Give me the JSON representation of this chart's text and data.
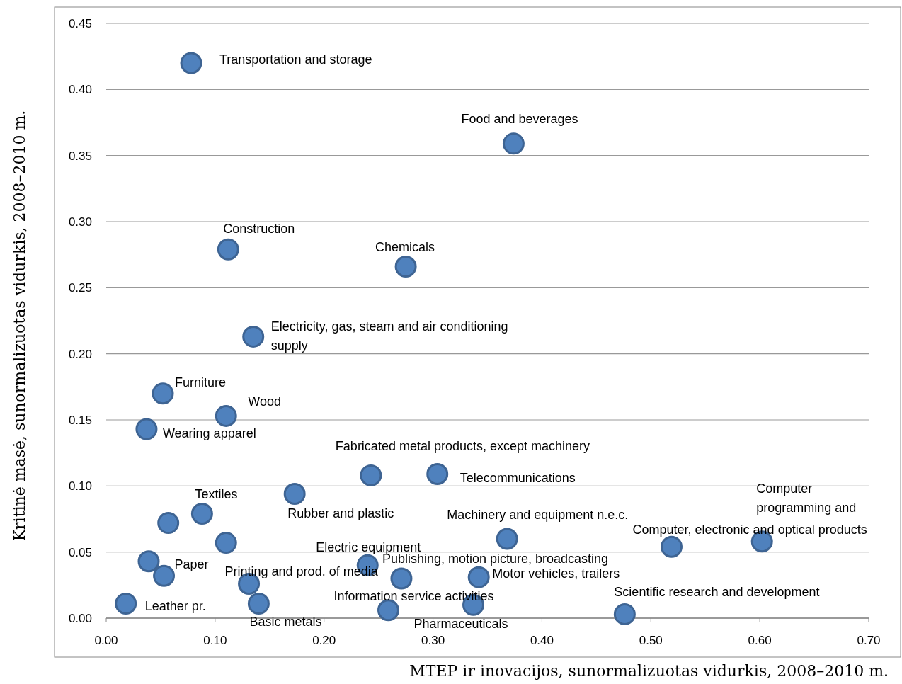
{
  "chart_data": {
    "type": "scatter",
    "xlabel": "MTEP ir inovacijos, sunormalizuotas vidurkis, 2008–2010 m.",
    "ylabel": "Kritinė masė, sunormalizuotas vidurkis, 2008–2010 m.",
    "xlim": [
      0,
      0.7
    ],
    "xticks": [
      {
        "value": 0,
        "label": "0.00"
      },
      {
        "value": 0.1,
        "label": "0.10"
      },
      {
        "value": 0.2,
        "label": "0.20"
      },
      {
        "value": 0.3,
        "label": "0.30"
      },
      {
        "value": 0.4,
        "label": "0.40"
      },
      {
        "value": 0.5,
        "label": "0.50"
      },
      {
        "value": 0.6,
        "label": "0.60"
      },
      {
        "value": 0.7,
        "label": "0.70"
      }
    ],
    "ylim": [
      0,
      0.45
    ],
    "yticks": [
      {
        "value": 0,
        "label": "0.00"
      },
      {
        "value": 0.05,
        "label": "0.05"
      },
      {
        "value": 0.1,
        "label": "0.10"
      },
      {
        "value": 0.15,
        "label": "0.15"
      },
      {
        "value": 0.2,
        "label": "0.20"
      },
      {
        "value": 0.25,
        "label": "0.25"
      },
      {
        "value": 0.3,
        "label": "0.30"
      },
      {
        "value": 0.35,
        "label": "0.35"
      },
      {
        "value": 0.4,
        "label": "0.40"
      },
      {
        "value": 0.45,
        "label": "0.45"
      }
    ],
    "grid": "y",
    "marker": "circle",
    "series": [
      {
        "color": "#4f81bd",
        "x": [
          0.078,
          0.374,
          0.112,
          0.275,
          0.135,
          0.052,
          0.11,
          0.037,
          0.243,
          0.304,
          0.173,
          0.088,
          0.057,
          0.11,
          0.368,
          0.519,
          0.602,
          0.039,
          0.053,
          0.24,
          0.271,
          0.342,
          0.131,
          0.14,
          0.018,
          0.259,
          0.337,
          0.476
        ],
        "values": [
          0.42,
          0.359,
          0.279,
          0.266,
          0.213,
          0.17,
          0.153,
          0.143,
          0.108,
          0.109,
          0.094,
          0.079,
          0.072,
          0.057,
          0.06,
          0.054,
          0.058,
          0.043,
          0.032,
          0.04,
          0.03,
          0.031,
          0.026,
          0.011,
          0.011,
          0.006,
          0.01,
          0.003
        ]
      }
    ],
    "annotations": [
      {
        "text": "Transportation and storage",
        "x": 0.078,
        "y": 0.42
      },
      {
        "text": "Food and beverages",
        "x": 0.374,
        "y": 0.359
      },
      {
        "text": "Construction",
        "x": 0.112,
        "y": 0.279
      },
      {
        "text": "Chemicals",
        "x": 0.275,
        "y": 0.266
      },
      {
        "text": "Electricity, gas, steam and air conditioning supply",
        "x": 0.135,
        "y": 0.213
      },
      {
        "text": "Furniture",
        "x": 0.052,
        "y": 0.17
      },
      {
        "text": "Wood",
        "x": 0.11,
        "y": 0.153
      },
      {
        "text": "Wearing apparel",
        "x": 0.037,
        "y": 0.143
      },
      {
        "text": "Fabricated metal products, except machinery",
        "x": 0.243,
        "y": 0.108
      },
      {
        "text": "Telecommunications",
        "x": 0.304,
        "y": 0.109
      },
      {
        "text": "Rubber and plastic",
        "x": 0.173,
        "y": 0.094
      },
      {
        "text": "Textiles",
        "x": 0.088,
        "y": 0.079
      },
      {
        "text": "Machinery and equipment n.e.c.",
        "x": 0.368,
        "y": 0.06
      },
      {
        "text": "Computer, electronic and optical products",
        "x": 0.519,
        "y": 0.054
      },
      {
        "text": "Computer programming and",
        "x": 0.602,
        "y": 0.058
      },
      {
        "text": "Paper",
        "x": 0.053,
        "y": 0.032
      },
      {
        "text": "Electric equipment",
        "x": 0.24,
        "y": 0.04
      },
      {
        "text": "Publishing, motion picture, broadcasting",
        "x": 0.271,
        "y": 0.03
      },
      {
        "text": "Motor vehicles, trailers",
        "x": 0.342,
        "y": 0.031
      },
      {
        "text": "Printing and prod. of media",
        "x": 0.131,
        "y": 0.026
      },
      {
        "text": "Basic metals",
        "x": 0.14,
        "y": 0.011
      },
      {
        "text": "Leather pr.",
        "x": 0.018,
        "y": 0.011
      },
      {
        "text": "Information service activities",
        "x": 0.259,
        "y": 0.006
      },
      {
        "text": "Pharmaceuticals",
        "x": 0.337,
        "y": 0.01
      },
      {
        "text": "Scientific research and development",
        "x": 0.476,
        "y": 0.003
      }
    ]
  }
}
